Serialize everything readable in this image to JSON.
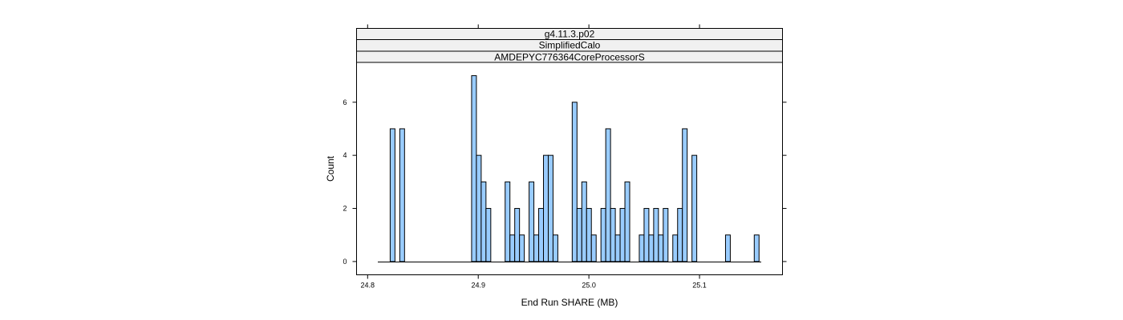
{
  "chart_data": {
    "type": "bar",
    "strips": [
      "g4.11.3.p02",
      "SimplifiedCalo",
      "AMDEPYC776364CoreProcessorS"
    ],
    "xlabel": "End Run SHARE (MB)",
    "ylabel": "Count",
    "xlim": [
      24.79,
      25.175
    ],
    "ylim": [
      -0.5,
      7.5
    ],
    "x_ticks": [
      24.8,
      24.9,
      25.0,
      25.1
    ],
    "x_tick_labels": [
      "24.8",
      "24.9",
      "25.0",
      "25.1"
    ],
    "y_ticks": [
      0,
      2,
      4,
      6
    ],
    "y_tick_labels": [
      "0",
      "2",
      "4",
      "6"
    ],
    "bin_width": 0.00433,
    "bin_start": 24.8074,
    "counts": [
      0,
      0,
      0,
      5,
      0,
      5,
      0,
      0,
      0,
      0,
      0,
      0,
      0,
      0,
      0,
      0,
      0,
      0,
      0,
      0,
      7,
      4,
      3,
      2,
      0,
      0,
      0,
      3,
      1,
      2,
      1,
      0,
      3,
      1,
      2,
      4,
      4,
      1,
      0,
      0,
      0,
      6,
      2,
      3,
      2,
      1,
      0,
      2,
      5,
      2,
      1,
      2,
      3,
      0,
      0,
      1,
      2,
      1,
      2,
      1,
      2,
      0,
      1,
      2,
      5,
      0,
      4,
      0,
      0,
      0,
      0,
      0,
      0,
      1,
      0,
      0,
      0,
      0,
      0,
      1,
      0,
      0,
      0,
      0
    ],
    "grid": false,
    "legend": "none"
  }
}
